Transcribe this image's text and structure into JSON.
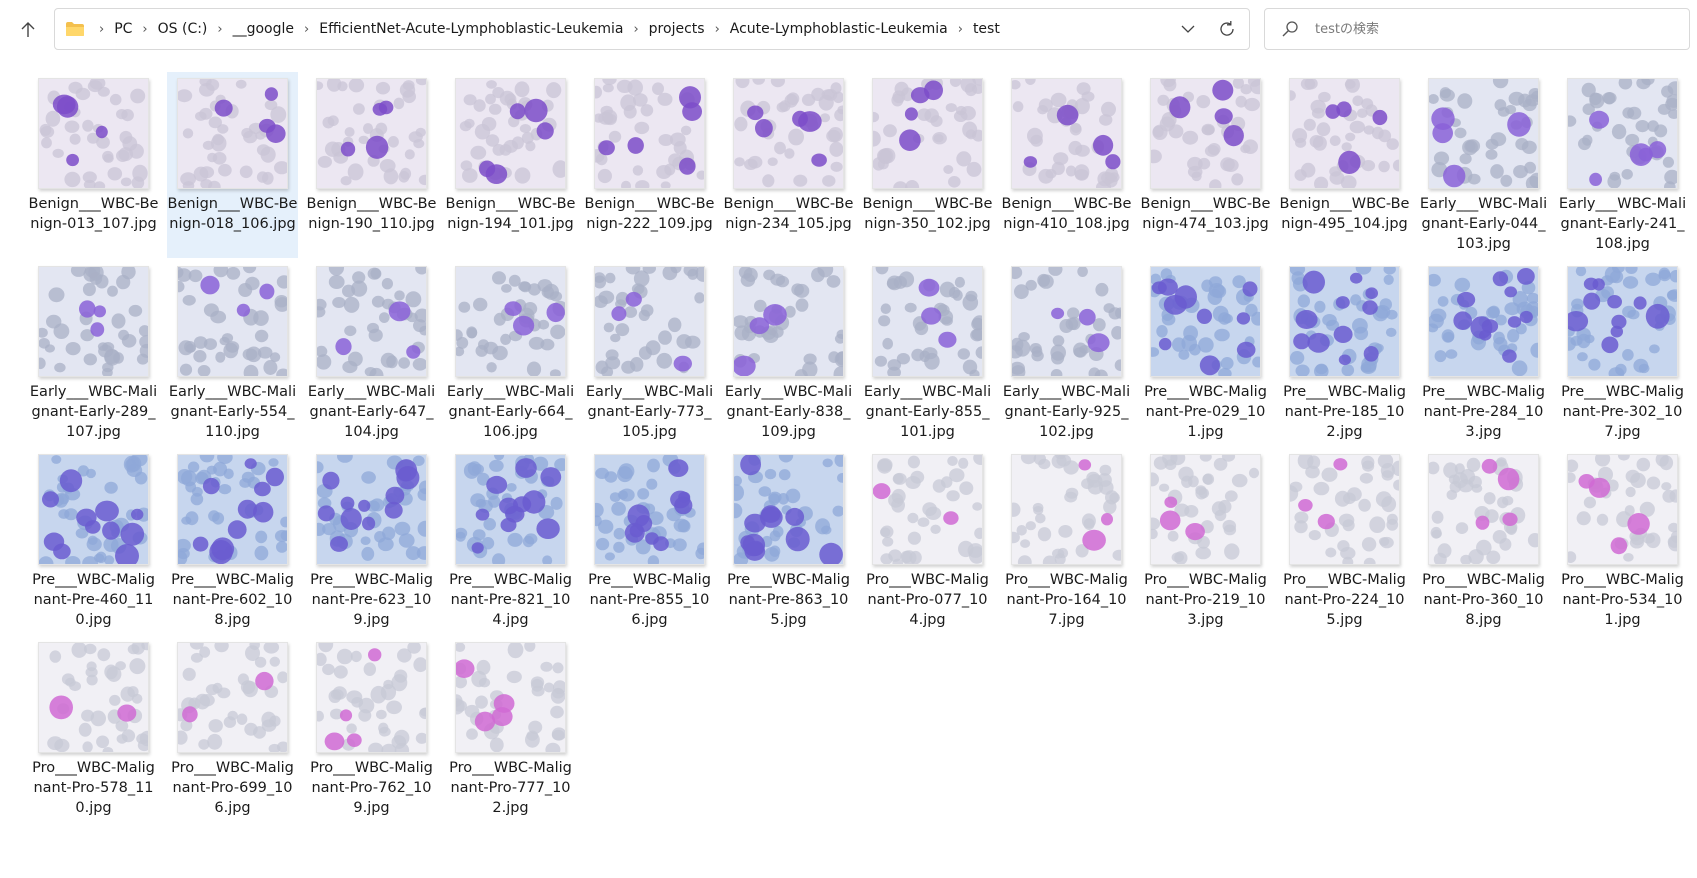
{
  "window": {
    "breadcrumb": [
      "PC",
      "OS (C:)",
      "__google",
      "EfficientNet-Acute-Lymphoblastic-Leukemia",
      "projects",
      "Acute-Lymphoblastic-Leukemia",
      "test"
    ]
  },
  "search": {
    "placeholder": "testの検索"
  },
  "icons": {
    "up": "up-arrow-icon",
    "folder": "folder-icon",
    "dropdown": "chevron-down-icon",
    "refresh": "refresh-icon",
    "search": "search-icon"
  },
  "colors": {
    "selected_bg": "#e5f0fb",
    "benign_bg": "#ece7f2",
    "early_bg": "#e3e6f2",
    "pre_bg": "#c7d6ee",
    "pro_bg": "#f1f0f5",
    "cell_purple": "#7d4cc9",
    "cell_pink": "#d06ad3",
    "rbc": "#b6b6c4"
  },
  "selected_file": "Benign__WBC-Benign-018_106.jpg",
  "files": [
    {
      "name": "Benign___WBC-Benign-013_107.jpg",
      "type": "benign"
    },
    {
      "name": "Benign___WBC-Benign-018_106.jpg",
      "type": "benign"
    },
    {
      "name": "Benign___WBC-Benign-190_110.jpg",
      "type": "benign"
    },
    {
      "name": "Benign___WBC-Benign-194_101.jpg",
      "type": "benign"
    },
    {
      "name": "Benign___WBC-Benign-222_109.jpg",
      "type": "benign"
    },
    {
      "name": "Benign___WBC-Benign-234_105.jpg",
      "type": "benign"
    },
    {
      "name": "Benign___WBC-Benign-350_102.jpg",
      "type": "benign"
    },
    {
      "name": "Benign___WBC-Benign-410_108.jpg",
      "type": "benign"
    },
    {
      "name": "Benign___WBC-Benign-474_103.jpg",
      "type": "benign"
    },
    {
      "name": "Benign___WBC-Benign-495_104.jpg",
      "type": "benign"
    },
    {
      "name": "Early___WBC-Malignant-Early-044_103.jpg",
      "type": "early"
    },
    {
      "name": "Early___WBC-Malignant-Early-241_108.jpg",
      "type": "early"
    },
    {
      "name": "Early___WBC-Malignant-Early-289_107.jpg",
      "type": "early"
    },
    {
      "name": "Early___WBC-Malignant-Early-554_110.jpg",
      "type": "early"
    },
    {
      "name": "Early___WBC-Malignant-Early-647_104.jpg",
      "type": "early"
    },
    {
      "name": "Early___WBC-Malignant-Early-664_106.jpg",
      "type": "early"
    },
    {
      "name": "Early___WBC-Malignant-Early-773_105.jpg",
      "type": "early"
    },
    {
      "name": "Early___WBC-Malignant-Early-838_109.jpg",
      "type": "early"
    },
    {
      "name": "Early___WBC-Malignant-Early-855_101.jpg",
      "type": "early"
    },
    {
      "name": "Early___WBC-Malignant-Early-925_102.jpg",
      "type": "early"
    },
    {
      "name": "Pre___WBC-Malignant-Pre-029_101.jpg",
      "type": "pre"
    },
    {
      "name": "Pre___WBC-Malignant-Pre-185_102.jpg",
      "type": "pre"
    },
    {
      "name": "Pre___WBC-Malignant-Pre-284_103.jpg",
      "type": "pre"
    },
    {
      "name": "Pre___WBC-Malignant-Pre-302_107.jpg",
      "type": "pre"
    },
    {
      "name": "Pre___WBC-Malignant-Pre-460_110.jpg",
      "type": "pre"
    },
    {
      "name": "Pre___WBC-Malignant-Pre-602_108.jpg",
      "type": "pre"
    },
    {
      "name": "Pre___WBC-Malignant-Pre-623_109.jpg",
      "type": "pre"
    },
    {
      "name": "Pre___WBC-Malignant-Pre-821_104.jpg",
      "type": "pre"
    },
    {
      "name": "Pre___WBC-Malignant-Pre-855_106.jpg",
      "type": "pre"
    },
    {
      "name": "Pre___WBC-Malignant-Pre-863_105.jpg",
      "type": "pre"
    },
    {
      "name": "Pro___WBC-Malignant-Pro-077_104.jpg",
      "type": "pro"
    },
    {
      "name": "Pro___WBC-Malignant-Pro-164_107.jpg",
      "type": "pro"
    },
    {
      "name": "Pro___WBC-Malignant-Pro-219_103.jpg",
      "type": "pro"
    },
    {
      "name": "Pro___WBC-Malignant-Pro-224_105.jpg",
      "type": "pro"
    },
    {
      "name": "Pro___WBC-Malignant-Pro-360_108.jpg",
      "type": "pro"
    },
    {
      "name": "Pro___WBC-Malignant-Pro-534_101.jpg",
      "type": "pro"
    },
    {
      "name": "Pro___WBC-Malignant-Pro-578_110.jpg",
      "type": "pro"
    },
    {
      "name": "Pro___WBC-Malignant-Pro-699_106.jpg",
      "type": "pro"
    },
    {
      "name": "Pro___WBC-Malignant-Pro-762_109.jpg",
      "type": "pro"
    },
    {
      "name": "Pro___WBC-Malignant-Pro-777_102.jpg",
      "type": "pro"
    }
  ]
}
